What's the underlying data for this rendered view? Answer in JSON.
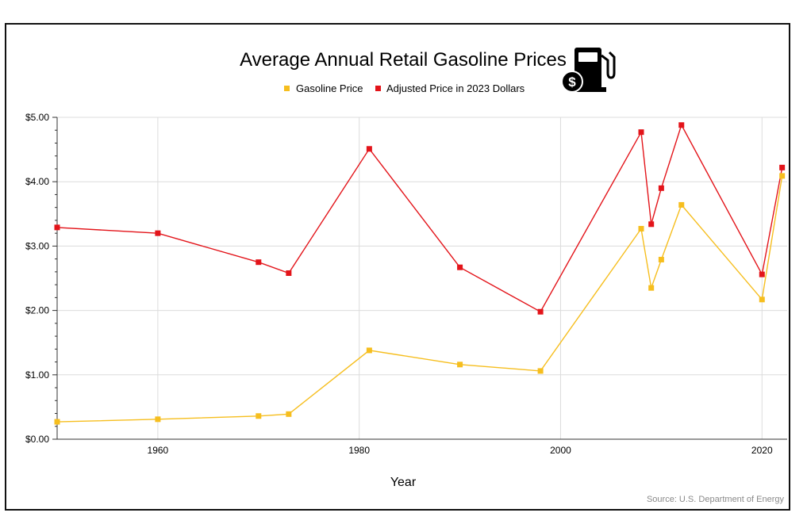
{
  "chart_data": {
    "type": "line",
    "title": "Average Annual Retail Gasoline Prices",
    "xlabel": "Year",
    "ylabel": "",
    "source": "Source: U.S. Department of Energy",
    "xlim": [
      1950,
      2022.5
    ],
    "ylim": [
      0,
      5
    ],
    "x_ticks": [
      1960,
      1980,
      2000,
      2020
    ],
    "y_ticks": [
      "$0.00",
      "$1.00",
      "$2.00",
      "$3.00",
      "$4.00",
      "$5.00"
    ],
    "grid": true,
    "legend_position": "top-center",
    "icon": "gas-pump-dollar-icon",
    "series": [
      {
        "name": "Gasoline Price",
        "color": "#f6be1e",
        "points": [
          [
            1950,
            0.27
          ],
          [
            1960,
            0.31
          ],
          [
            1970,
            0.36
          ],
          [
            1973,
            0.39
          ],
          [
            1981,
            1.38
          ],
          [
            1990,
            1.16
          ],
          [
            1998,
            1.06
          ],
          [
            2008,
            3.27
          ],
          [
            2009,
            2.35
          ],
          [
            2010,
            2.79
          ],
          [
            2012,
            3.64
          ],
          [
            2020,
            2.17
          ],
          [
            2022,
            4.09
          ]
        ]
      },
      {
        "name": "Adjusted Price in 2023 Dollars",
        "color": "#e3141a",
        "points": [
          [
            1950,
            3.29
          ],
          [
            1960,
            3.2
          ],
          [
            1970,
            2.75
          ],
          [
            1973,
            2.58
          ],
          [
            1981,
            4.51
          ],
          [
            1990,
            2.67
          ],
          [
            1998,
            1.98
          ],
          [
            2008,
            4.77
          ],
          [
            2009,
            3.34
          ],
          [
            2010,
            3.9
          ],
          [
            2012,
            4.88
          ],
          [
            2020,
            2.56
          ],
          [
            2022,
            4.22
          ]
        ]
      }
    ]
  }
}
